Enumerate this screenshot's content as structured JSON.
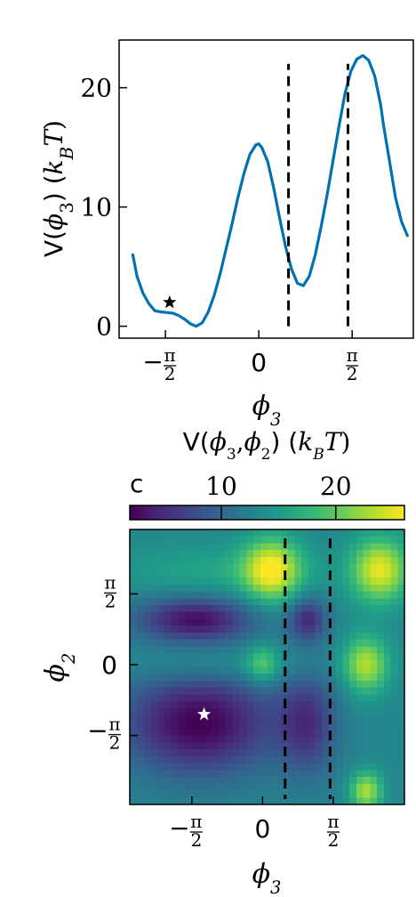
{
  "chart_data": [
    {
      "type": "line",
      "xlabel": "ϕ3",
      "ylabel_prefix": "V(ϕ3) (",
      "ylabel_kb": "k",
      "ylabel_sub": "B",
      "ylabel_T": "T)",
      "xlim": [
        -2.35,
        2.6
      ],
      "ylim": [
        -1,
        24
      ],
      "xticks": [
        {
          "value": -1.5708,
          "label_type": "frac",
          "sign": "−",
          "num": "π",
          "den": "2"
        },
        {
          "value": 0,
          "label_type": "text",
          "label": "0"
        },
        {
          "value": 1.5708,
          "label_type": "frac",
          "sign": "",
          "num": "π",
          "den": "2"
        }
      ],
      "yticks": [
        {
          "value": 0,
          "label": "0"
        },
        {
          "value": 10,
          "label": "10"
        },
        {
          "value": 20,
          "label": "20"
        }
      ],
      "series": [
        {
          "color": "#0072B2",
          "x": [
            -2.12,
            -2.05,
            -1.95,
            -1.85,
            -1.75,
            -1.65,
            -1.55,
            -1.45,
            -1.35,
            -1.25,
            -1.15,
            -1.05,
            -0.95,
            -0.85,
            -0.75,
            -0.65,
            -0.55,
            -0.45,
            -0.35,
            -0.25,
            -0.15,
            -0.05,
            0.0,
            0.05,
            0.15,
            0.25,
            0.35,
            0.45,
            0.55,
            0.65,
            0.75,
            0.85,
            0.95,
            1.05,
            1.15,
            1.25,
            1.35,
            1.45,
            1.55,
            1.65,
            1.75,
            1.85,
            1.95,
            2.05,
            2.1,
            2.2,
            2.3,
            2.4,
            2.5
          ],
          "y": [
            6,
            4.2,
            2.8,
            1.9,
            1.3,
            1.2,
            1.15,
            1.1,
            0.9,
            0.6,
            0.2,
            0.0,
            0.3,
            1.2,
            2.6,
            4.4,
            6.5,
            8.6,
            10.8,
            12.8,
            14.4,
            15.2,
            15.3,
            15.0,
            13.8,
            11.6,
            9.1,
            6.7,
            4.8,
            3.6,
            3.4,
            4.2,
            6.0,
            8.4,
            11.0,
            13.9,
            16.8,
            19.5,
            21.4,
            22.4,
            22.7,
            22.3,
            21.0,
            18.6,
            16.8,
            13.8,
            10.8,
            8.8,
            7.6
          ]
        }
      ],
      "marker": {
        "x": -1.5,
        "y": 2.0,
        "symbol": "star",
        "color": "#000000"
      },
      "vlines": [
        {
          "x": 0.5,
          "y_from": 0,
          "y_to": 22,
          "style": "dashed",
          "color": "#000000"
        },
        {
          "x": 1.5,
          "y_from": 0,
          "y_to": 22,
          "style": "dashed",
          "color": "#000000"
        }
      ]
    },
    {
      "type": "heatmap",
      "xlabel": "ϕ3",
      "ylabel": "ϕ2",
      "xlim": [
        -2.95,
        3.15
      ],
      "ylim": [
        -3.1,
        3.0
      ],
      "xticks": [
        {
          "value": -1.5708,
          "label_type": "frac",
          "sign": "−",
          "num": "π",
          "den": "2"
        },
        {
          "value": 0,
          "label_type": "text",
          "label": "0"
        },
        {
          "value": 1.5708,
          "label_type": "frac",
          "sign": "",
          "num": "π",
          "den": "2"
        }
      ],
      "yticks": [
        {
          "value": 1.5708,
          "label_type": "frac",
          "sign": "",
          "num": "π",
          "den": "2"
        },
        {
          "value": 0,
          "label_type": "text",
          "label": "0"
        },
        {
          "value": -1.5708,
          "label_type": "frac",
          "sign": "−",
          "num": "π",
          "den": "2"
        }
      ],
      "colorbar": {
        "title_prefix": "V(ϕ3,ϕ2) (",
        "title_kb": "k",
        "title_sub": "B",
        "title_T": "T)",
        "panel_label": "c",
        "range": [
          2,
          26
        ],
        "ticks": [
          {
            "value": 10,
            "label": "10"
          },
          {
            "value": 20,
            "label": "20"
          }
        ],
        "colormap": [
          "#440154",
          "#482878",
          "#3e4989",
          "#31688e",
          "#26828e",
          "#1f9e89",
          "#35b779",
          "#6ece58",
          "#b5de2b",
          "#fde725"
        ]
      },
      "marker": {
        "x": -1.3,
        "y": -1.1,
        "symbol": "star",
        "color": "#ffffff"
      },
      "vlines": [
        {
          "x": 0.5,
          "style": "dashed",
          "color": "#000000"
        },
        {
          "x": 1.5,
          "style": "dashed",
          "color": "#000000"
        }
      ],
      "features": [
        {
          "type": "base",
          "value": 13
        },
        {
          "cx": 0.2,
          "cy": 2.1,
          "sx": 0.45,
          "sy": 0.5,
          "amp": 12
        },
        {
          "cx": 2.6,
          "cy": 2.1,
          "sx": 0.45,
          "sy": 0.5,
          "amp": 12
        },
        {
          "cx": 2.3,
          "cy": 0.0,
          "sx": 0.35,
          "sy": 0.45,
          "amp": 10
        },
        {
          "cx": 2.3,
          "cy": -2.8,
          "sx": 0.25,
          "sy": 0.3,
          "amp": 10
        },
        {
          "cx": 0.0,
          "cy": 0.0,
          "sx": 0.25,
          "sy": 0.3,
          "amp": 6
        },
        {
          "cx": -1.5,
          "cy": 1.0,
          "sx": 0.9,
          "sy": 0.35,
          "amp": -10
        },
        {
          "cx": -1.4,
          "cy": -1.3,
          "sx": 1.2,
          "sy": 0.8,
          "amp": -11
        },
        {
          "cx": 1.0,
          "cy": 1.0,
          "sx": 0.3,
          "sy": 0.35,
          "amp": -8
        },
        {
          "cx": 1.0,
          "cy": -1.3,
          "sx": 0.45,
          "sy": 0.8,
          "amp": -7
        },
        {
          "cx": -1.0,
          "cy": 0.0,
          "sx": 1.6,
          "sy": 0.3,
          "amp": 2.5
        },
        {
          "cx": -1.0,
          "cy": 2.1,
          "sx": 1.6,
          "sy": 0.4,
          "amp": 3
        }
      ]
    }
  ]
}
